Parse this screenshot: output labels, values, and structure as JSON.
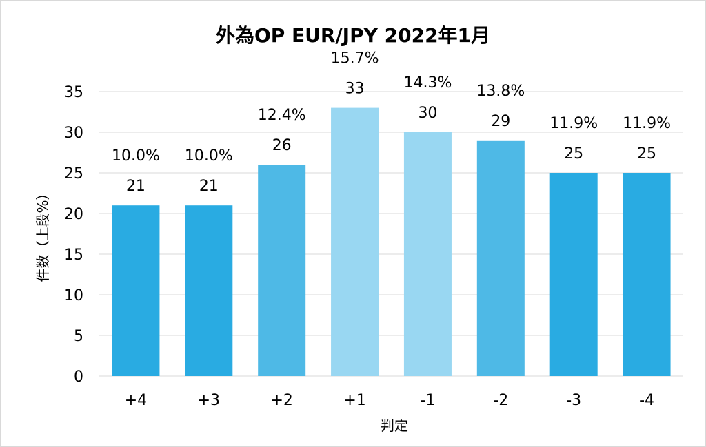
{
  "chart_data": {
    "type": "bar",
    "title": "外為OP EUR/JPY 2022年1月",
    "xlabel": "判定",
    "ylabel": "件数（上段%）",
    "categories": [
      "+4",
      "+3",
      "+2",
      "+1",
      "-1",
      "-2",
      "-3",
      "-4"
    ],
    "values": [
      21,
      21,
      26,
      33,
      30,
      29,
      25,
      25
    ],
    "percent_labels": [
      "10.0%",
      "10.0%",
      "12.4%",
      "15.7%",
      "14.3%",
      "13.8%",
      "11.9%",
      "11.9%"
    ],
    "bar_colors": [
      "#29abe2",
      "#29abe2",
      "#4eb9e6",
      "#99d7f2",
      "#99d7f2",
      "#4eb9e6",
      "#29abe2",
      "#29abe2"
    ],
    "ylim": [
      0,
      35
    ],
    "yticks": [
      "0",
      "5",
      "10",
      "15",
      "20",
      "25",
      "30",
      "35"
    ],
    "grid": true,
    "gridline_color": "#d9d9d9"
  }
}
